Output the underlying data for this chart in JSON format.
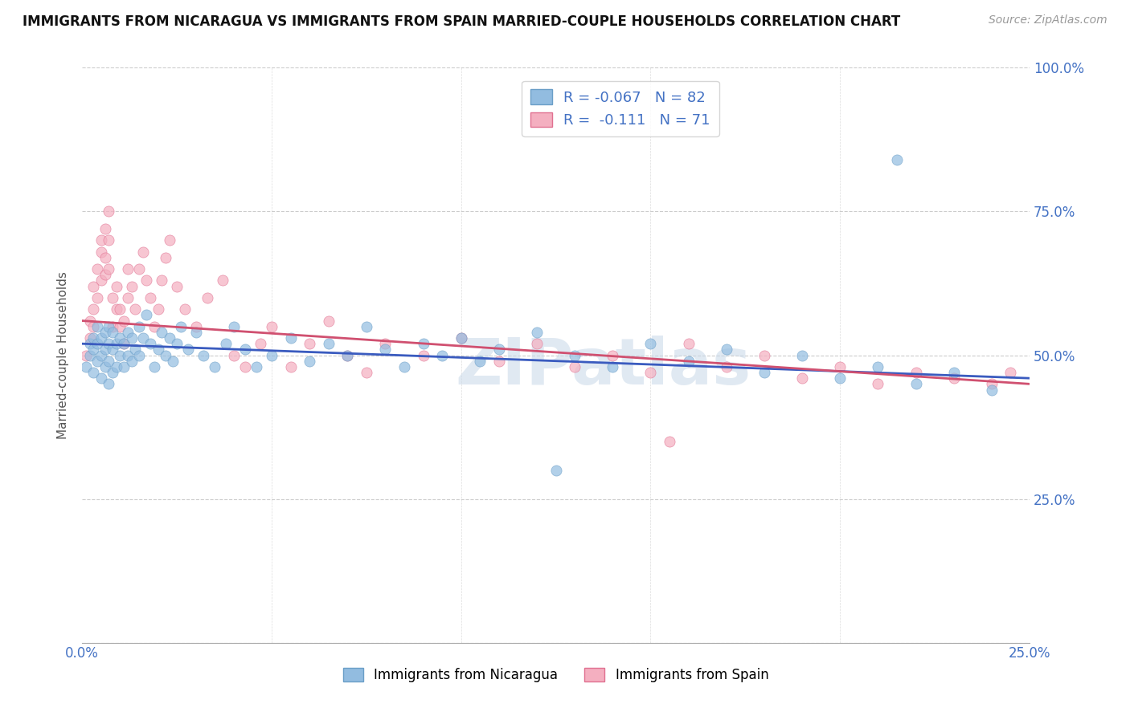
{
  "title": "IMMIGRANTS FROM NICARAGUA VS IMMIGRANTS FROM SPAIN MARRIED-COUPLE HOUSEHOLDS CORRELATION CHART",
  "source": "Source: ZipAtlas.com",
  "ylabel": "Married-couple Households",
  "x_min": 0.0,
  "x_max": 0.25,
  "y_min": 0.0,
  "y_max": 1.0,
  "nicaragua_color": "#92bce0",
  "nicaragua_edge_color": "#6a9ec7",
  "spain_color": "#f4afc0",
  "spain_edge_color": "#e07090",
  "nicaragua_line_color": "#3a5bbf",
  "spain_line_color": "#d05070",
  "nicaragua_R": -0.067,
  "nicaragua_N": 82,
  "spain_R": -0.111,
  "spain_N": 71,
  "watermark": "ZIPatlas",
  "background_color": "#ffffff",
  "scatter_alpha": 0.7,
  "scatter_size": 90,
  "nicaragua_x": [
    0.001,
    0.002,
    0.002,
    0.003,
    0.003,
    0.003,
    0.004,
    0.004,
    0.004,
    0.005,
    0.005,
    0.005,
    0.006,
    0.006,
    0.006,
    0.007,
    0.007,
    0.007,
    0.007,
    0.008,
    0.008,
    0.008,
    0.009,
    0.009,
    0.01,
    0.01,
    0.011,
    0.011,
    0.012,
    0.012,
    0.013,
    0.013,
    0.014,
    0.015,
    0.015,
    0.016,
    0.017,
    0.018,
    0.019,
    0.02,
    0.021,
    0.022,
    0.023,
    0.024,
    0.025,
    0.026,
    0.028,
    0.03,
    0.032,
    0.035,
    0.038,
    0.04,
    0.043,
    0.046,
    0.05,
    0.055,
    0.06,
    0.065,
    0.07,
    0.075,
    0.08,
    0.085,
    0.09,
    0.095,
    0.1,
    0.105,
    0.11,
    0.12,
    0.13,
    0.14,
    0.15,
    0.16,
    0.17,
    0.18,
    0.19,
    0.2,
    0.21,
    0.22,
    0.23,
    0.24,
    0.125,
    0.215
  ],
  "nicaragua_y": [
    0.48,
    0.5,
    0.52,
    0.47,
    0.51,
    0.53,
    0.49,
    0.52,
    0.55,
    0.46,
    0.5,
    0.53,
    0.48,
    0.51,
    0.54,
    0.45,
    0.49,
    0.52,
    0.55,
    0.47,
    0.51,
    0.54,
    0.48,
    0.52,
    0.5,
    0.53,
    0.48,
    0.52,
    0.5,
    0.54,
    0.49,
    0.53,
    0.51,
    0.55,
    0.5,
    0.53,
    0.57,
    0.52,
    0.48,
    0.51,
    0.54,
    0.5,
    0.53,
    0.49,
    0.52,
    0.55,
    0.51,
    0.54,
    0.5,
    0.48,
    0.52,
    0.55,
    0.51,
    0.48,
    0.5,
    0.53,
    0.49,
    0.52,
    0.5,
    0.55,
    0.51,
    0.48,
    0.52,
    0.5,
    0.53,
    0.49,
    0.51,
    0.54,
    0.5,
    0.48,
    0.52,
    0.49,
    0.51,
    0.47,
    0.5,
    0.46,
    0.48,
    0.45,
    0.47,
    0.44,
    0.3,
    0.84
  ],
  "spain_x": [
    0.001,
    0.002,
    0.002,
    0.003,
    0.003,
    0.003,
    0.004,
    0.004,
    0.005,
    0.005,
    0.005,
    0.006,
    0.006,
    0.006,
    0.007,
    0.007,
    0.007,
    0.008,
    0.008,
    0.009,
    0.009,
    0.01,
    0.01,
    0.011,
    0.011,
    0.012,
    0.012,
    0.013,
    0.014,
    0.015,
    0.016,
    0.017,
    0.018,
    0.019,
    0.02,
    0.021,
    0.022,
    0.023,
    0.025,
    0.027,
    0.03,
    0.033,
    0.037,
    0.04,
    0.043,
    0.047,
    0.05,
    0.055,
    0.06,
    0.065,
    0.07,
    0.075,
    0.08,
    0.09,
    0.1,
    0.11,
    0.12,
    0.13,
    0.14,
    0.15,
    0.16,
    0.17,
    0.18,
    0.19,
    0.2,
    0.21,
    0.22,
    0.23,
    0.24,
    0.245,
    0.155
  ],
  "spain_y": [
    0.5,
    0.53,
    0.56,
    0.55,
    0.58,
    0.62,
    0.6,
    0.65,
    0.68,
    0.63,
    0.7,
    0.72,
    0.67,
    0.64,
    0.75,
    0.7,
    0.65,
    0.6,
    0.55,
    0.62,
    0.58,
    0.55,
    0.58,
    0.52,
    0.56,
    0.6,
    0.65,
    0.62,
    0.58,
    0.65,
    0.68,
    0.63,
    0.6,
    0.55,
    0.58,
    0.63,
    0.67,
    0.7,
    0.62,
    0.58,
    0.55,
    0.6,
    0.63,
    0.5,
    0.48,
    0.52,
    0.55,
    0.48,
    0.52,
    0.56,
    0.5,
    0.47,
    0.52,
    0.5,
    0.53,
    0.49,
    0.52,
    0.48,
    0.5,
    0.47,
    0.52,
    0.48,
    0.5,
    0.46,
    0.48,
    0.45,
    0.47,
    0.46,
    0.45,
    0.47,
    0.35
  ]
}
